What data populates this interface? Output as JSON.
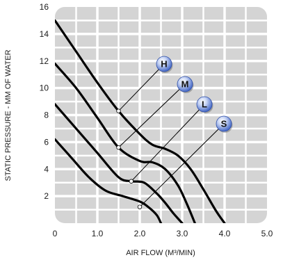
{
  "chart_data": {
    "type": "line",
    "xlabel": "AIR FLOW (M³/MIN)",
    "ylabel": "STATIC PRESSURE - MM OF WATER",
    "xlim": [
      0,
      5
    ],
    "ylim": [
      0,
      16
    ],
    "x_ticks": [
      "0",
      "1.0",
      "2.0",
      "3.0",
      "4.0",
      "5.0"
    ],
    "y_ticks": [
      "2",
      "4",
      "6",
      "8",
      "10",
      "12",
      "14",
      "16"
    ],
    "grid": true,
    "colors": {
      "plot_background": "#d4d4d4",
      "grid": "#ffffff",
      "curve": "#000000",
      "badge": "#6f8fd6"
    },
    "series": [
      {
        "name": "H",
        "x": [
          0.0,
          0.5,
          1.0,
          1.5,
          2.0,
          2.3,
          2.6,
          2.9,
          3.2,
          3.5,
          3.8,
          4.0
        ],
        "y": [
          15.0,
          12.7,
          10.4,
          8.3,
          6.6,
          5.8,
          5.5,
          5.0,
          4.0,
          2.5,
          0.9,
          0.0
        ]
      },
      {
        "name": "M",
        "x": [
          0.0,
          0.5,
          1.0,
          1.5,
          2.0,
          2.3,
          2.6,
          2.9,
          3.1,
          3.3
        ],
        "y": [
          11.8,
          10.0,
          7.8,
          5.6,
          4.6,
          4.5,
          4.0,
          2.8,
          1.5,
          0.0
        ]
      },
      {
        "name": "L",
        "x": [
          0.0,
          0.5,
          1.0,
          1.5,
          1.8,
          2.1,
          2.4,
          2.6,
          2.8,
          3.0
        ],
        "y": [
          8.8,
          7.0,
          5.2,
          3.4,
          3.1,
          3.0,
          2.2,
          1.5,
          0.7,
          0.0
        ]
      },
      {
        "name": "S",
        "x": [
          0.0,
          0.4,
          0.8,
          1.2,
          1.6,
          2.0,
          2.2,
          2.4,
          2.5
        ],
        "y": [
          6.2,
          4.8,
          3.4,
          2.4,
          2.0,
          1.6,
          1.2,
          0.6,
          0.0
        ]
      }
    ],
    "annotations": [
      {
        "label": "H",
        "at_x": 1.5,
        "at_y": 8.3
      },
      {
        "label": "M",
        "at_x": 1.5,
        "at_y": 5.6
      },
      {
        "label": "L",
        "at_x": 1.8,
        "at_y": 3.1
      },
      {
        "label": "S",
        "at_x": 2.0,
        "at_y": 1.2
      }
    ]
  }
}
